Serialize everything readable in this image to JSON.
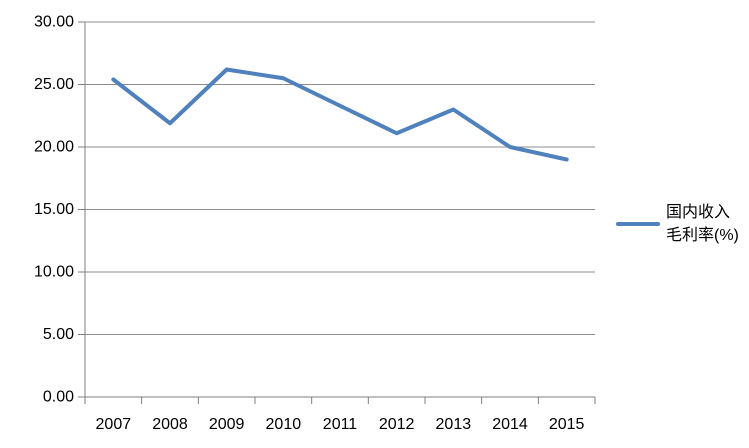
{
  "chart_data": {
    "type": "line",
    "title": "",
    "xlabel": "",
    "ylabel": "",
    "categories": [
      "2007",
      "2008",
      "2009",
      "2010",
      "2011",
      "2012",
      "2013",
      "2014",
      "2015"
    ],
    "series": [
      {
        "name": "国内收入毛利率(%)",
        "color": "#4F81BD",
        "values": [
          25.4,
          21.9,
          26.2,
          25.5,
          23.3,
          21.1,
          23.0,
          20.0,
          19.0
        ]
      }
    ],
    "ylim": [
      0,
      30
    ],
    "ytick_step": 5,
    "ytick_decimals": 2,
    "ytick_labels": [
      "0.00",
      "5.00",
      "10.00",
      "15.00",
      "20.00",
      "25.00",
      "30.00"
    ],
    "grid": "horizontal",
    "legend_position": "right",
    "legend_label_lines": [
      "国内收入",
      "毛利率(%)"
    ]
  },
  "colors": {
    "series_line": "#4F81BD",
    "gridline": "#8C8C8C",
    "axis": "#7F7F7F",
    "label_text": "#000000",
    "background": "#FFFFFF"
  }
}
